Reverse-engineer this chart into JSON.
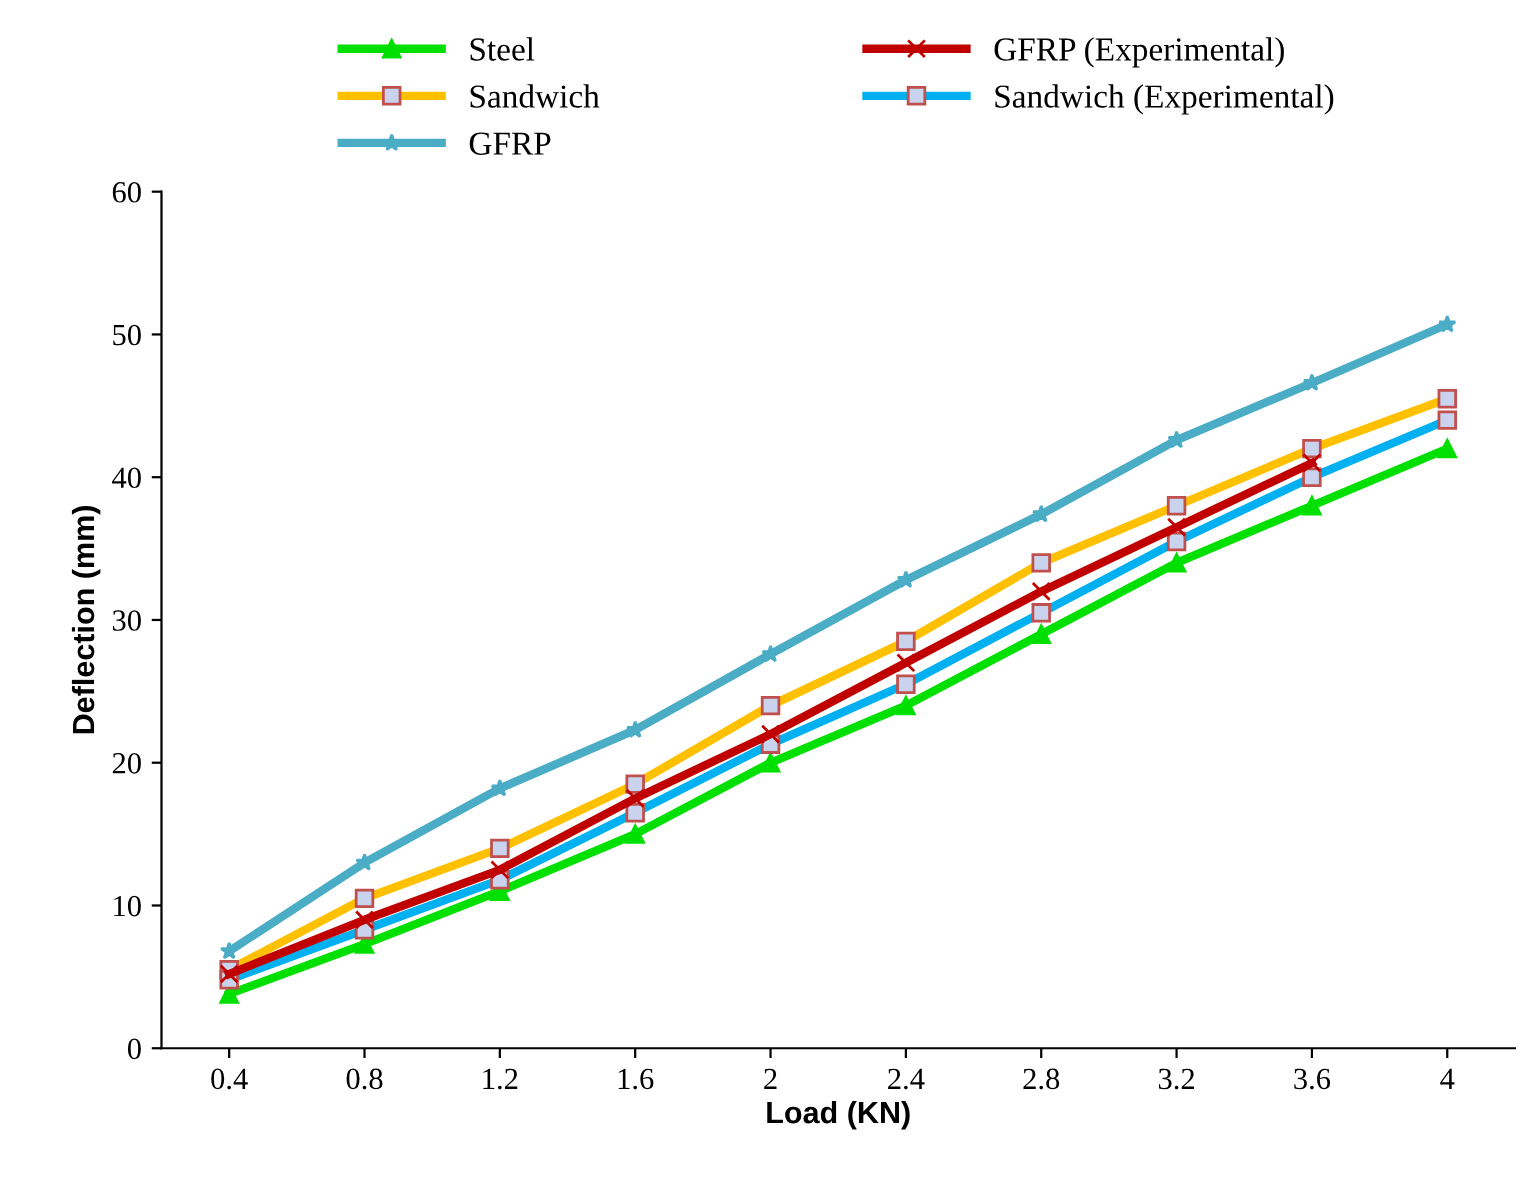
{
  "chart_data": {
    "type": "line",
    "xlabel": "Load (KN)",
    "ylabel": "Deflection (mm)",
    "categories": [
      "0.4",
      "0.8",
      "1.2",
      "1.6",
      "2",
      "2.4",
      "2.8",
      "3.2",
      "3.6",
      "4"
    ],
    "ylim": [
      0,
      60
    ],
    "yticks": [
      0,
      10,
      20,
      30,
      40,
      50,
      60
    ],
    "grid": false,
    "legend": "top",
    "series": [
      {
        "name": "Steel",
        "color": "#00e000",
        "marker": "triangle",
        "values": [
          3.8,
          7.3,
          11,
          15,
          20,
          24,
          29,
          34,
          38,
          42
        ]
      },
      {
        "name": "GFRP (Experimental)",
        "color": "#c00000",
        "marker": "cross",
        "values": [
          5.2,
          9,
          12.5,
          17.5,
          22,
          27,
          32,
          36.5,
          41,
          null
        ]
      },
      {
        "name": "Sandwich",
        "color": "#ffc000",
        "marker": "square",
        "values": [
          5.5,
          10.5,
          14,
          18.5,
          24,
          28.5,
          34,
          38,
          42,
          45.5
        ]
      },
      {
        "name": "Sandwich (Experimental)",
        "color": "#00b0f0",
        "marker": "square",
        "values": [
          4.8,
          8.3,
          11.8,
          16.5,
          21.3,
          25.5,
          30.5,
          35.5,
          40,
          44
        ]
      },
      {
        "name": "GFRP",
        "color": "#4bacc6",
        "marker": "star",
        "values": [
          6.8,
          13,
          18.2,
          22.3,
          27.6,
          32.8,
          37.4,
          42.6,
          46.6,
          50.7
        ]
      }
    ]
  }
}
